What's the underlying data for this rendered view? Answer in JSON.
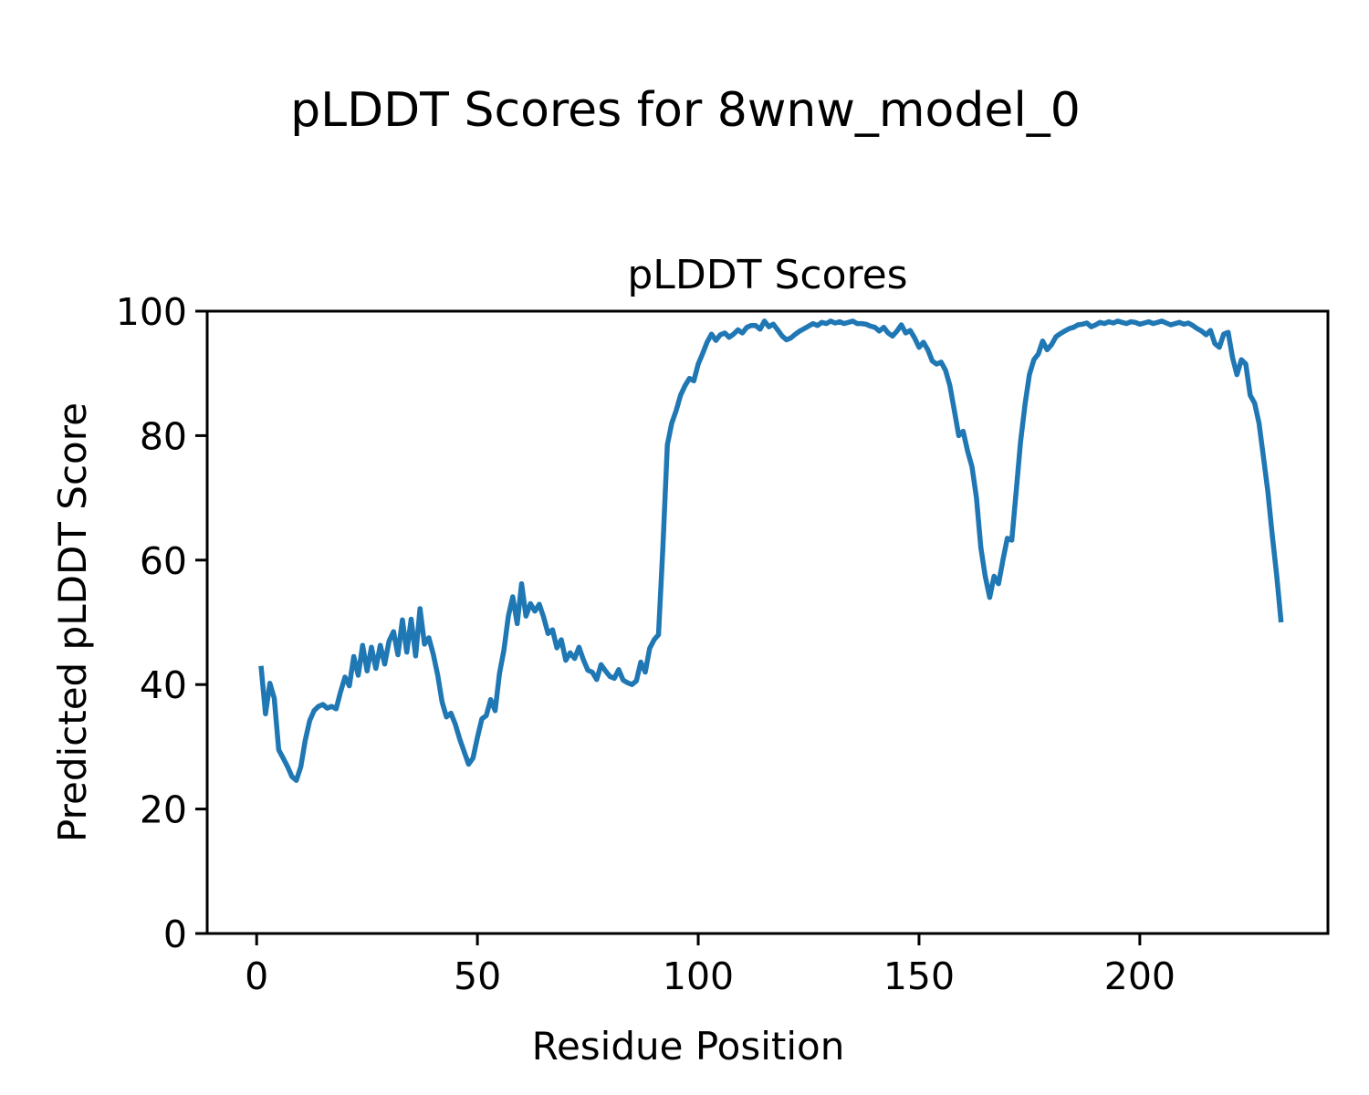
{
  "figure": {
    "suptitle": "pLDDT Scores for 8wnw_model_0",
    "axes_title": "pLDDT Scores",
    "xlabel": "Residue Position",
    "ylabel": "Predicted pLDDT Score"
  },
  "colors": {
    "line": "#1f77b4",
    "axes": "#000000",
    "background": "#ffffff"
  },
  "chart_data": {
    "type": "line",
    "title": "pLDDT Scores",
    "suptitle": "pLDDT Scores for 8wnw_model_0",
    "xlabel": "Residue Position",
    "ylabel": "Predicted pLDDT Score",
    "xlim": [
      -11.2,
      242.6
    ],
    "ylim": [
      0,
      100
    ],
    "x_ticks": [
      0,
      50,
      100,
      150,
      200
    ],
    "y_ticks": [
      0,
      20,
      40,
      60,
      80,
      100
    ],
    "grid": false,
    "legend_position": "none",
    "series": [
      {
        "name": "pLDDT",
        "color": "#1f77b4",
        "x_start": 1,
        "x_step": 1,
        "values": [
          43.0,
          35.3,
          40.2,
          37.8,
          29.5,
          28.2,
          26.8,
          25.2,
          24.6,
          26.8,
          31.0,
          34.2,
          35.8,
          36.5,
          36.8,
          36.2,
          36.5,
          36.1,
          38.8,
          41.2,
          39.8,
          44.5,
          41.5,
          46.3,
          42.2,
          46.0,
          42.6,
          46.3,
          43.3,
          47.0,
          48.5,
          44.8,
          50.4,
          45.2,
          50.5,
          44.6,
          52.2,
          46.5,
          47.5,
          44.9,
          41.5,
          37.2,
          34.8,
          35.4,
          33.6,
          31.2,
          29.2,
          27.2,
          28.2,
          31.5,
          34.5,
          35.0,
          37.6,
          35.8,
          41.8,
          45.5,
          51.0,
          54.1,
          49.8,
          56.2,
          51.0,
          53.0,
          51.8,
          52.9,
          50.8,
          48.2,
          48.8,
          45.9,
          47.2,
          43.9,
          45.1,
          44.2,
          46.0,
          44.0,
          42.3,
          42.0,
          40.8,
          43.2,
          42.2,
          41.3,
          41.0,
          42.4,
          40.7,
          40.3,
          40.0,
          40.6,
          43.6,
          42.0,
          45.8,
          47.2,
          48.0,
          62.0,
          78.5,
          82.0,
          84.0,
          86.5,
          88.0,
          89.2,
          88.8,
          91.5,
          93.2,
          95.0,
          96.3,
          95.3,
          96.2,
          96.5,
          95.8,
          96.3,
          97.0,
          96.5,
          97.4,
          97.7,
          97.7,
          97.1,
          98.4,
          97.5,
          97.9,
          97.0,
          96.0,
          95.4,
          95.7,
          96.3,
          96.8,
          97.2,
          97.6,
          98.0,
          97.7,
          98.2,
          98.0,
          98.4,
          98.1,
          98.3,
          98.0,
          98.2,
          98.4,
          98.0,
          98.0,
          97.9,
          97.6,
          97.4,
          96.8,
          97.4,
          96.5,
          96.0,
          96.8,
          97.8,
          96.5,
          96.9,
          95.7,
          94.2,
          95.0,
          93.8,
          92.0,
          91.5,
          91.8,
          90.5,
          88.0,
          84.0,
          80.0,
          80.7,
          77.5,
          75.0,
          70.0,
          62.0,
          57.4,
          54.0,
          57.4,
          56.2,
          60.0,
          63.5,
          63.2,
          71.0,
          79.0,
          85.0,
          89.8,
          92.2,
          93.1,
          95.2,
          93.8,
          94.6,
          95.9,
          96.4,
          96.8,
          97.2,
          97.4,
          97.8,
          97.9,
          98.1,
          97.5,
          97.8,
          98.2,
          98.0,
          98.3,
          98.1,
          98.4,
          98.2,
          98.0,
          98.3,
          98.2,
          97.9,
          98.1,
          98.3,
          98.0,
          98.2,
          98.4,
          98.1,
          97.8,
          98.0,
          98.2,
          97.9,
          98.1,
          97.7,
          97.2,
          96.8,
          96.2,
          96.9,
          94.8,
          94.2,
          96.3,
          96.6,
          92.5,
          89.8,
          92.2,
          91.5,
          86.5,
          85.2,
          82.0,
          76.5,
          71.0,
          64.0,
          57.5,
          50.0
        ]
      }
    ]
  }
}
